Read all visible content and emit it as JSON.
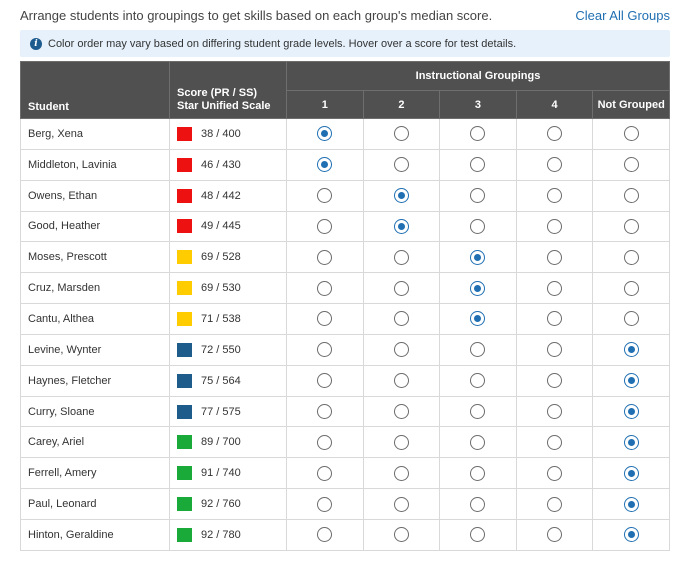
{
  "header": {
    "instruction": "Arrange students into groupings to get skills based on each group's median score.",
    "clear_all_label": "Clear All Groups"
  },
  "banner": {
    "icon": "info-icon",
    "text": "Color order may vary based on differing student grade levels. Hover over a score for test details."
  },
  "table": {
    "student_header": "Student",
    "score_header_line1": "Score (PR / SS)",
    "score_header_line2": "Star Unified Scale",
    "groupings_header": "Instructional Groupings",
    "group_labels": [
      "1",
      "2",
      "3",
      "4",
      "Not Grouped"
    ]
  },
  "colors": {
    "red": "#ee1111",
    "yellow": "#ffcc00",
    "blue": "#1e5c8c",
    "green": "#1aaa3a",
    "radio_selected": "#1f6fb2"
  },
  "students": [
    {
      "name": "Berg, Xena",
      "score": "38 / 400",
      "color": "#ee1111",
      "group": 0
    },
    {
      "name": "Middleton, Lavinia",
      "score": "46 / 430",
      "color": "#ee1111",
      "group": 0
    },
    {
      "name": "Owens, Ethan",
      "score": "48 / 442",
      "color": "#ee1111",
      "group": 1
    },
    {
      "name": "Good, Heather",
      "score": "49 / 445",
      "color": "#ee1111",
      "group": 1
    },
    {
      "name": "Moses, Prescott",
      "score": "69 / 528",
      "color": "#ffcc00",
      "group": 2
    },
    {
      "name": "Cruz, Marsden",
      "score": "69 / 530",
      "color": "#ffcc00",
      "group": 2
    },
    {
      "name": "Cantu, Althea",
      "score": "71 / 538",
      "color": "#ffcc00",
      "group": 2
    },
    {
      "name": "Levine, Wynter",
      "score": "72 / 550",
      "color": "#1e5c8c",
      "group": 4
    },
    {
      "name": "Haynes, Fletcher",
      "score": "75 / 564",
      "color": "#1e5c8c",
      "group": 4
    },
    {
      "name": "Curry, Sloane",
      "score": "77 / 575",
      "color": "#1e5c8c",
      "group": 4
    },
    {
      "name": "Carey, Ariel",
      "score": "89 / 700",
      "color": "#1aaa3a",
      "group": 4
    },
    {
      "name": "Ferrell, Amery",
      "score": "91 / 740",
      "color": "#1aaa3a",
      "group": 4
    },
    {
      "name": "Paul, Leonard",
      "score": "92 / 760",
      "color": "#1aaa3a",
      "group": 4
    },
    {
      "name": "Hinton, Geraldine",
      "score": "92 / 780",
      "color": "#1aaa3a",
      "group": 4
    }
  ]
}
